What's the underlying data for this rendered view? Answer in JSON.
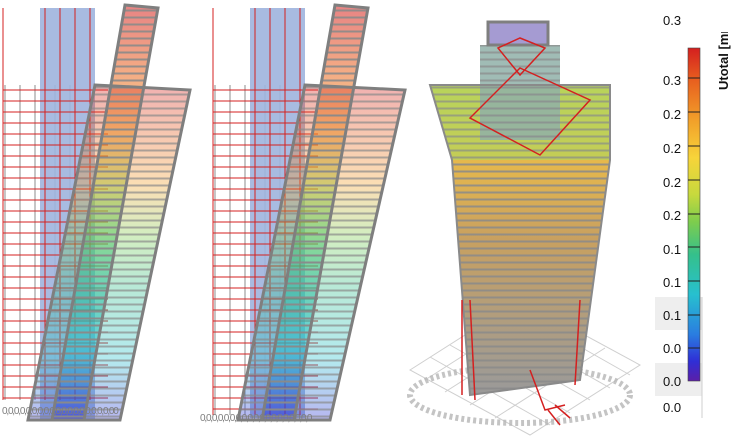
{
  "legend": {
    "title": "Utotal [mm]",
    "top_label": "0.3",
    "tick_labels": [
      "0.3",
      "0.2",
      "0.2",
      "0.2",
      "0.2",
      "0.1",
      "0.1",
      "0.1",
      "0.0",
      "0.0",
      "0.0"
    ],
    "gradient": [
      "#d41f1f",
      "#e8611f",
      "#f2a12a",
      "#f7d43a",
      "#c7d93d",
      "#7fcd4c",
      "#35c08b",
      "#27c0cf",
      "#2a7de0",
      "#2f2fd6",
      "#5b1fa8"
    ],
    "title_color": "#111111"
  },
  "rulers": {
    "left": "0,0,0,0,0,0,0,0,0,0,0,0,0,0,0,0,0,0,00",
    "middle": "0,0,0,0,0,0,0,0,0,0,0,0,0,0,0,0,0,0,0"
  },
  "colors": {
    "frame": "#7f7f7f",
    "bracing": "#d42020",
    "core": "#9fb4de",
    "grid_floor": "#c8c8c8"
  },
  "views": [
    "deformed-frame-view-1",
    "deformed-frame-view-2",
    "3d-perspective-view"
  ]
}
